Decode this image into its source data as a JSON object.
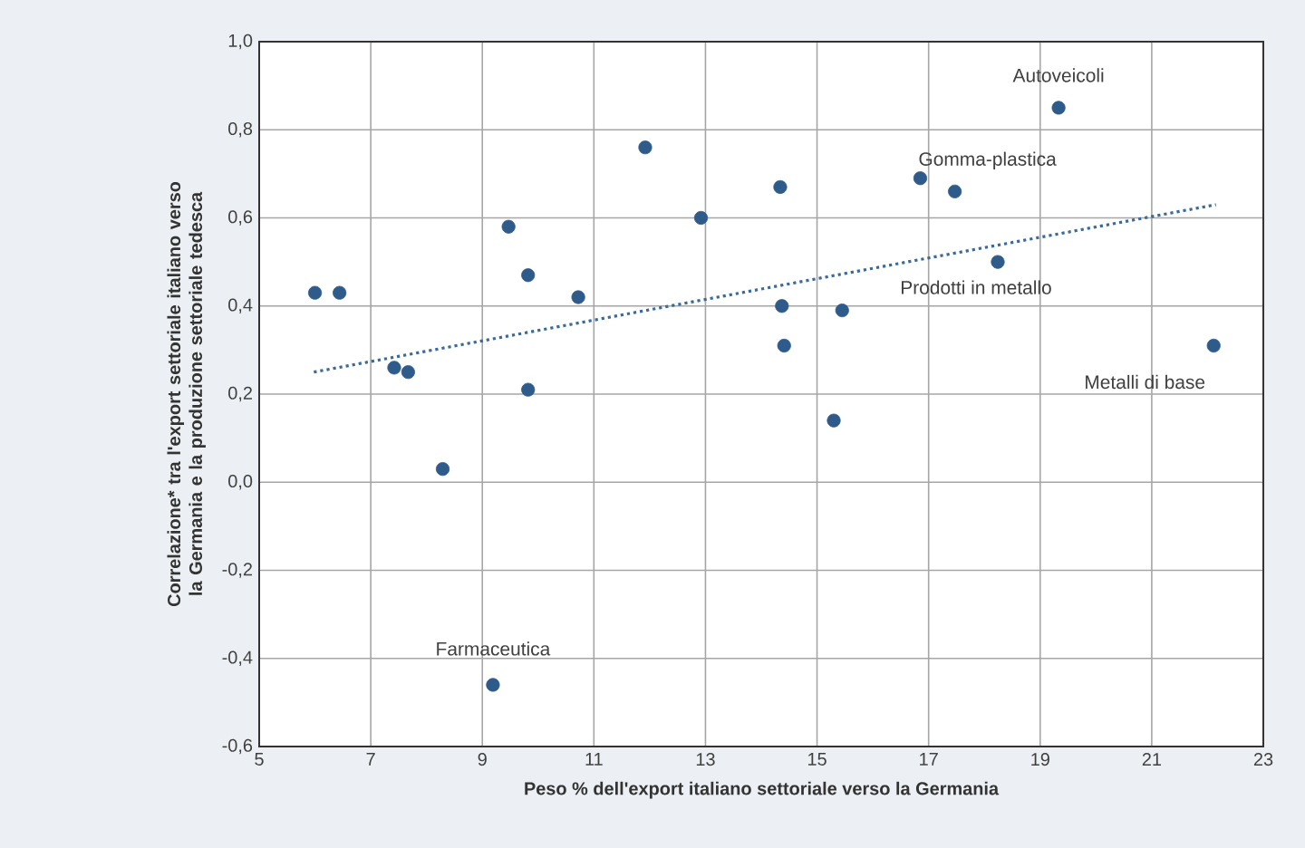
{
  "chart_data": {
    "type": "scatter",
    "xlabel": "Peso % dell'export italiano settoriale verso la Germania",
    "ylabel": "Correlazione* tra l'export settoriale italiano verso la Germania e la produzione settoriale tedesca",
    "xlim": [
      5,
      23
    ],
    "xticks": [
      5,
      7,
      9,
      11,
      13,
      15,
      17,
      19,
      21,
      23
    ],
    "ylim": [
      -0.6,
      1.0
    ],
    "yticks": [
      {
        "value": -0.6,
        "label": "-0,6"
      },
      {
        "value": -0.4,
        "label": "-0,4"
      },
      {
        "value": -0.2,
        "label": "-0,2"
      },
      {
        "value": 0.0,
        "label": "0,0"
      },
      {
        "value": 0.2,
        "label": "0,2"
      },
      {
        "value": 0.4,
        "label": "0,4"
      },
      {
        "value": 0.6,
        "label": "0,6"
      },
      {
        "value": 0.8,
        "label": "0,8"
      },
      {
        "value": 1.0,
        "label": "1,0"
      }
    ],
    "grid": true,
    "series": [
      {
        "color": "#2e5b8a",
        "marker": "circle",
        "x": [
          6.0,
          6.44,
          7.42,
          7.67,
          8.29,
          9.47,
          9.82,
          9.82,
          10.72,
          11.92,
          12.92,
          9.19,
          14.34,
          14.37,
          14.41,
          15.3,
          15.45,
          16.85,
          17.47,
          18.24,
          19.33,
          22.11
        ],
        "values": [
          0.43,
          0.43,
          0.26,
          0.25,
          0.03,
          0.58,
          0.47,
          0.21,
          0.42,
          0.76,
          0.6,
          -0.46,
          0.67,
          0.4,
          0.31,
          0.14,
          0.39,
          0.69,
          0.66,
          0.5,
          0.85,
          0.31
        ]
      },
      {
        "type": "line",
        "color": "#3a6a9a",
        "line_style": "dotted",
        "marker": "none",
        "x": [
          5.98,
          22.15
        ],
        "values": [
          0.25,
          0.63
        ]
      }
    ],
    "annotations": [
      {
        "text": "Autoveicoli",
        "x": 19.33,
        "y": 0.85
      },
      {
        "text": "Gomma-plastica",
        "x": 17.47,
        "y": 0.66
      },
      {
        "text": "Prodotti in metallo",
        "x": 18.24,
        "y": 0.5
      },
      {
        "text": "Metalli di base",
        "x": 22.11,
        "y": 0.31
      },
      {
        "text": "Farmaceutica",
        "x": 9.19,
        "y": -0.46
      }
    ]
  }
}
